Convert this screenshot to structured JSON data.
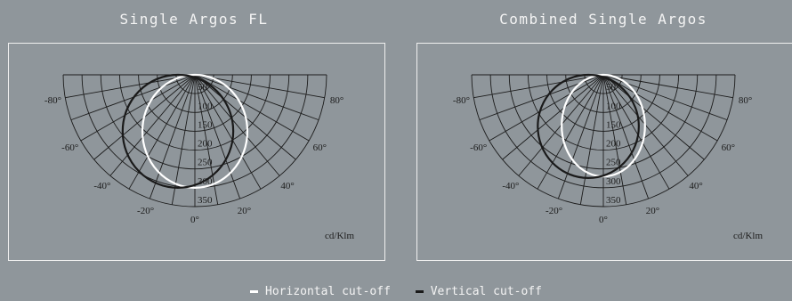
{
  "chart_data": [
    {
      "type": "polar",
      "title": "Single Argos FL",
      "unit_label": "cd/Klm",
      "radial_ticks": [
        "50",
        "100",
        "150",
        "200",
        "250",
        "300",
        "350"
      ],
      "radial_max": 350,
      "angle_labels": [
        "-80°",
        "-60°",
        "-40°",
        "-20°",
        "0°",
        "20°",
        "40°",
        "60°",
        "80°"
      ],
      "series": [
        {
          "name": "Horizontal cut-off",
          "color": "#ffffff",
          "curve": {
            "center_cd": 150,
            "radius_cd": 150,
            "horizontal_stretch": 0.93
          }
        },
        {
          "name": "Vertical cut-off",
          "color": "#1a1a1a",
          "curve": {
            "center_cd": 150,
            "radius_cd": 150,
            "horizontal_stretch": 0.98,
            "shift_left_cd": 45
          }
        }
      ]
    },
    {
      "type": "polar",
      "title": "Combined Single Argos",
      "unit_label": "cd/Klm",
      "radial_ticks": [
        "50",
        "100",
        "150",
        "200",
        "250",
        "300",
        "350"
      ],
      "radial_max": 350,
      "angle_labels": [
        "-80°",
        "-60°",
        "-40°",
        "-20°",
        "0°",
        "20°",
        "40°",
        "60°",
        "80°"
      ],
      "series": [
        {
          "name": "Horizontal cut-off",
          "color": "#ffffff",
          "curve": {
            "center_cd": 135,
            "radius_cd": 135,
            "horizontal_stretch": 0.82
          }
        },
        {
          "name": "Vertical cut-off",
          "color": "#1a1a1a",
          "curve": {
            "center_cd": 137,
            "radius_cd": 137,
            "horizontal_stretch": 0.98,
            "shift_left_cd": 40
          }
        }
      ]
    }
  ],
  "legend": [
    {
      "label": "Horizontal cut-off",
      "color": "#ffffff"
    },
    {
      "label": "Vertical cut-off",
      "color": "#1a1a1a"
    }
  ]
}
